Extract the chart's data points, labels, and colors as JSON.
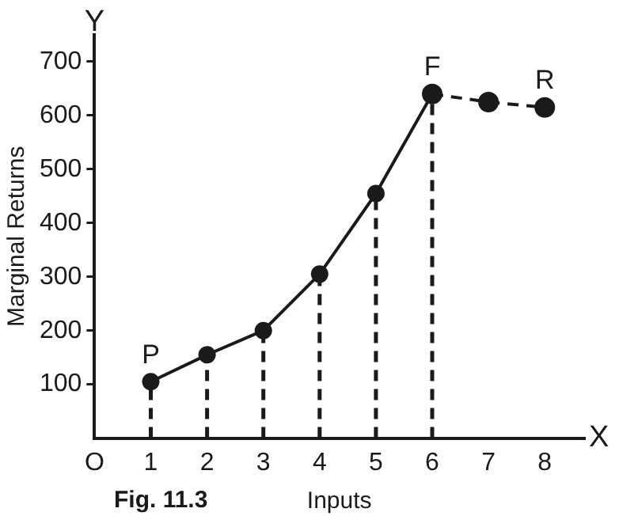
{
  "chart_data": {
    "type": "line",
    "xlabel": "Inputs",
    "ylabel": "Marginal Returns",
    "annotations": [
      "Y",
      "X",
      "Fig. 11.3",
      {
        "text": "P",
        "x": 1,
        "y": 105
      },
      {
        "text": "F",
        "x": 6,
        "y": 640
      },
      {
        "text": "R",
        "x": 8,
        "y": 615
      }
    ],
    "xlim": [
      0,
      8.7
    ],
    "xticks": [
      {
        "value": 0,
        "label": "O"
      },
      1,
      2,
      3,
      4,
      5,
      6,
      7,
      8
    ],
    "ylim": [
      0,
      750
    ],
    "yticks": [
      100,
      200,
      300,
      400,
      500,
      600,
      700
    ],
    "legend": false,
    "series": [
      {
        "x": [
          1,
          2,
          3,
          4,
          5,
          6
        ],
        "values": [
          105,
          155,
          200,
          305,
          455,
          640
        ],
        "color": "#1a1a1a",
        "marker": "none",
        "line_style": "solid"
      },
      {
        "x": [
          6,
          7,
          8
        ],
        "values": [
          640,
          625,
          615
        ],
        "color": "#1a1a1a",
        "marker": "circle",
        "line_style": "dashed"
      },
      {
        "type": "lollipop",
        "x": [
          1,
          2,
          3,
          4,
          5,
          6
        ],
        "values": [
          105,
          155,
          200,
          305,
          455,
          640
        ],
        "color": "#1a1a1a",
        "marker": "circle",
        "line_style": "dashed"
      }
    ]
  }
}
